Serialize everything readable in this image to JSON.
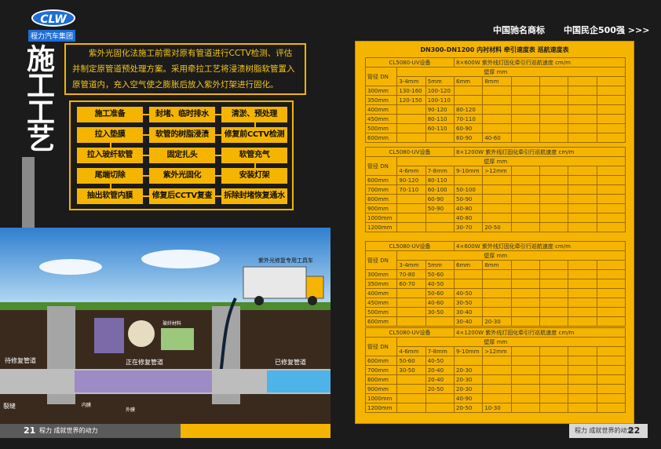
{
  "header": {
    "logo": "CLW",
    "company": "程力汽车集团",
    "trademark": "中国驰名商标",
    "rank": "中国民企500强 >>>"
  },
  "left_page": {
    "title": "施工工艺",
    "intro": "紫外光固化法施工前需对原有管道进行CCTV检测、评估并制定原管道预处理方案。采用牵拉工艺将浸渍树脂软管置入原管道内，充入空气使之膨胀后放入紫外灯架进行固化。",
    "flow": [
      [
        "施工准备",
        "封堵、临时排水",
        "清淤、预处理"
      ],
      [
        "拉入垫膜",
        "软管的树脂浸渍",
        "修复前CCTV检测"
      ],
      [
        "拉入玻纤软管",
        "固定扎头",
        "软管充气"
      ],
      [
        "尾端切除",
        "紫外光固化",
        "安装灯架"
      ],
      [
        "抽出软管内膜",
        "修复后CCTV复查",
        "拆除封堵恢复通水"
      ]
    ],
    "illustration": {
      "truck": "紫外光修复专用工具车",
      "pending": "待修复管道",
      "repairing": "正在修复管道",
      "repaired": "已修复管道",
      "crack": "裂缝",
      "fiber": "玻纤材料",
      "inner": "内膜",
      "outer": "外膜"
    },
    "footer": {
      "page": "21",
      "slogan": "程力 成就世界的动力"
    }
  },
  "right_page": {
    "panel_title": "DN300-DN1200 内衬材料 牵引速度表 巡航速度表",
    "tables": [
      {
        "equipment": "CL5080-UV设备",
        "spec": "8×600W 紫外线灯固化牵引行巡航速度 cm/m",
        "row_header": "管径 DN",
        "col_group": "壁厚 mm",
        "columns": [
          "3-4mm",
          "5mm",
          "6mm",
          "8mm"
        ],
        "rows": [
          {
            "dn": "300mm",
            "cells": [
              "130-160",
              "100-120",
              null,
              null
            ]
          },
          {
            "dn": "350mm",
            "cells": [
              "120-150",
              "100-110",
              null,
              null
            ]
          },
          {
            "dn": "400mm",
            "cells": [
              null,
              "90-120",
              "80-120",
              null
            ]
          },
          {
            "dn": "450mm",
            "cells": [
              null,
              "80-110",
              "70-110",
              null
            ]
          },
          {
            "dn": "500mm",
            "cells": [
              null,
              "60-110",
              "60-90",
              null
            ]
          },
          {
            "dn": "600mm",
            "cells": [
              null,
              null,
              "60-90",
              "40-60"
            ]
          }
        ]
      },
      {
        "equipment": "CL5080-UV设备",
        "spec": "8×1200W 紫外线灯固化牵引行巡航速度 cm/m",
        "row_header": "管径 DN",
        "col_group": "壁厚 mm",
        "columns": [
          "4-6mm",
          "7-8mm",
          "9-10mm",
          ">12mm"
        ],
        "rows": [
          {
            "dn": "600mm",
            "cells": [
              "90-120",
              "80-110",
              null,
              null
            ]
          },
          {
            "dn": "700mm",
            "cells": [
              "70-110",
              "60-100",
              "50-100",
              null
            ]
          },
          {
            "dn": "800mm",
            "cells": [
              null,
              "60-90",
              "50-90",
              null
            ]
          },
          {
            "dn": "900mm",
            "cells": [
              null,
              "50-90",
              "40-80",
              null
            ]
          },
          {
            "dn": "1000mm",
            "cells": [
              null,
              null,
              "40-80",
              null
            ]
          },
          {
            "dn": "1200mm",
            "cells": [
              null,
              null,
              "30-70",
              "20-50"
            ]
          }
        ]
      },
      {
        "equipment": "CL5080-UV设备",
        "spec": "4×600W 紫外线灯固化牵引行巡航速度 cm/m",
        "row_header": "管径 DN",
        "col_group": "壁厚 mm",
        "columns": [
          "3-4mm",
          "5mm",
          "6mm",
          "8mm"
        ],
        "rows": [
          {
            "dn": "300mm",
            "cells": [
              "70-80",
              "50-60",
              null,
              null
            ]
          },
          {
            "dn": "350mm",
            "cells": [
              "60-70",
              "40-50",
              null,
              null
            ]
          },
          {
            "dn": "400mm",
            "cells": [
              null,
              "50-60",
              "40-50",
              null
            ]
          },
          {
            "dn": "450mm",
            "cells": [
              null,
              "40-60",
              "30-50",
              null
            ]
          },
          {
            "dn": "500mm",
            "cells": [
              null,
              "30-50",
              "30-40",
              null
            ]
          },
          {
            "dn": "600mm",
            "cells": [
              null,
              null,
              "30-40",
              "20-30"
            ]
          }
        ]
      },
      {
        "equipment": "CL5080-UV设备",
        "spec": "4×1200W 紫外线灯固化牵引行巡航速度 cm/m",
        "row_header": "管径 DN",
        "col_group": "壁厚 mm",
        "columns": [
          "4-6mm",
          "7-8mm",
          "9-10mm",
          ">12mm"
        ],
        "rows": [
          {
            "dn": "600mm",
            "cells": [
              "50-60",
              "40-50",
              null,
              null
            ]
          },
          {
            "dn": "700mm",
            "cells": [
              "30-50",
              "20-40",
              "20-30",
              null
            ]
          },
          {
            "dn": "800mm",
            "cells": [
              null,
              "20-40",
              "20-30",
              null
            ]
          },
          {
            "dn": "900mm",
            "cells": [
              null,
              "20-50",
              "20-30",
              null
            ]
          },
          {
            "dn": "1000mm",
            "cells": [
              null,
              null,
              "40-90",
              null
            ]
          },
          {
            "dn": "1200mm",
            "cells": [
              null,
              null,
              "20-50",
              "10-30"
            ]
          }
        ]
      }
    ],
    "footer": {
      "page": "22",
      "slogan": "程力 成就世界的动力"
    }
  }
}
